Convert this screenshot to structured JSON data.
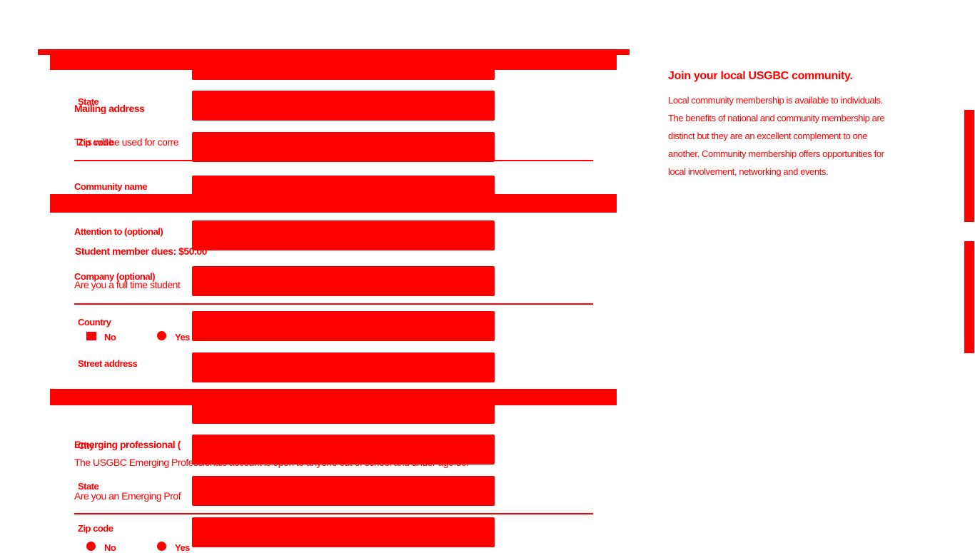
{
  "sidebar": {
    "title": "Join your local USGBC community.",
    "body": "Local community membership is available to individuals. The benefits of national and community membership are distinct but they are an excellent complement to one another. Community membership offers opportunities for local involvement, networking and events."
  },
  "form": {
    "mailing_heading": "Mailing address",
    "mailing_note": "This will be used for corre",
    "labels": {
      "state": "State",
      "zip_code": "Zip code",
      "community_name": "Community name",
      "attention": "Attention to (optional)",
      "company": "Company (optional)",
      "country": "Country",
      "street": "Street address",
      "city": "City",
      "state2": "State",
      "zip2": "Zip code"
    },
    "student": {
      "heading": "Student member dues: $50.00",
      "question": "Are you a full time student",
      "no": "No",
      "yes": "Yes"
    },
    "ep": {
      "heading": "Emerging professional (",
      "note": "The USGBC Emerging Professionals account is open to anyone out of school and under age 30.",
      "question": "Are you an Emerging Prof",
      "no": "No",
      "yes": "Yes"
    }
  },
  "colors": {
    "accent": "#ff0000",
    "background": "#ffffff"
  }
}
